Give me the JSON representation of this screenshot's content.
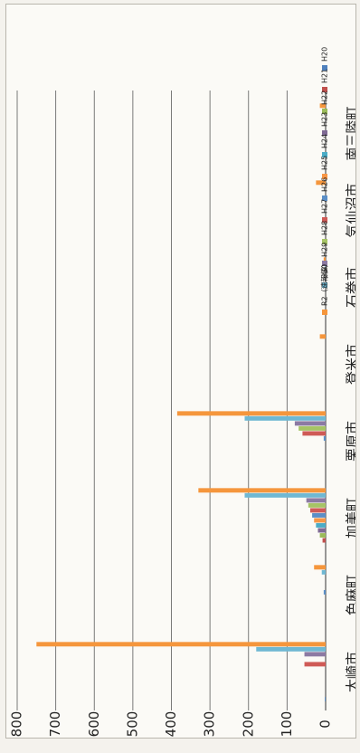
{
  "chart_data": {
    "type": "bar",
    "orientation": "horizontal-rotated",
    "title": "",
    "xlabel": "",
    "ylabel": "",
    "ylim": [
      0,
      800
    ],
    "yticks": [
      0,
      100,
      200,
      300,
      400,
      500,
      600,
      700,
      800
    ],
    "grid": true,
    "legend_position": "right",
    "categories": [
      "大崎市",
      "色麻町",
      "加美町",
      "栗原市",
      "登米市",
      "石巻市",
      "気仙沼市",
      "南三陸町"
    ],
    "series": [
      {
        "name": "H20",
        "color": "#4f81bd",
        "values": [
          2,
          0,
          0,
          0,
          0,
          0,
          0,
          0
        ]
      },
      {
        "name": "H21",
        "color": "#c0504d",
        "values": [
          0,
          0,
          8,
          0,
          0,
          0,
          0,
          0
        ]
      },
      {
        "name": "H22",
        "color": "#9bbb59",
        "values": [
          0,
          0,
          15,
          0,
          0,
          0,
          0,
          0
        ]
      },
      {
        "name": "H23",
        "color": "#7f6a94",
        "values": [
          0,
          0,
          20,
          0,
          0,
          0,
          0,
          0
        ]
      },
      {
        "name": "H24",
        "color": "#4bacc6",
        "values": [
          0,
          0,
          25,
          0,
          0,
          0,
          0,
          0
        ]
      },
      {
        "name": "H25",
        "color": "#f79646",
        "values": [
          0,
          0,
          30,
          0,
          0,
          0,
          0,
          0
        ]
      },
      {
        "name": "H26",
        "color": "#5b8fc7",
        "values": [
          0,
          5,
          35,
          5,
          0,
          0,
          0,
          0
        ]
      },
      {
        "name": "H27",
        "color": "#cf5a56",
        "values": [
          55,
          0,
          40,
          60,
          0,
          0,
          0,
          0
        ]
      },
      {
        "name": "H28",
        "color": "#a6c465",
        "values": [
          0,
          0,
          45,
          70,
          0,
          0,
          0,
          0
        ]
      },
      {
        "name": "H29",
        "color": "#8c7aa3",
        "values": [
          55,
          0,
          50,
          80,
          0,
          0,
          0,
          0
        ]
      },
      {
        "name": "H30",
        "color": "#6fb8d3",
        "values": [
          180,
          10,
          210,
          210,
          0,
          2,
          0,
          0
        ]
      },
      {
        "name": "R2（速報値）",
        "color": "#f5963c",
        "values": [
          750,
          30,
          330,
          385,
          15,
          5,
          25,
          15
        ]
      }
    ]
  }
}
